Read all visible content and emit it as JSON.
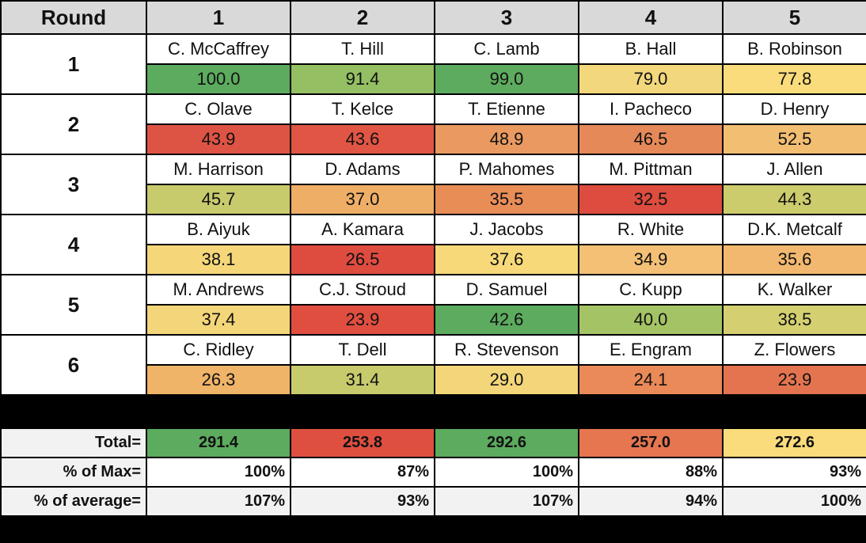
{
  "header": [
    "Round",
    "1",
    "2",
    "3",
    "4",
    "5"
  ],
  "rounds": [
    {
      "label": "1",
      "names": [
        "C. McCaffrey",
        "T. Hill",
        "C. Lamb",
        "B. Hall",
        "B. Robinson"
      ],
      "scores": [
        "100.0",
        "91.4",
        "99.0",
        "79.0",
        "77.8"
      ],
      "colors": [
        "#5cab5e",
        "#94bf62",
        "#5dab5e",
        "#f3d77c",
        "#fadc7c"
      ]
    },
    {
      "label": "2",
      "names": [
        "C. Olave",
        "T. Kelce",
        "T. Etienne",
        "I. Pacheco",
        "D. Henry"
      ],
      "scores": [
        "43.9",
        "43.6",
        "48.9",
        "46.5",
        "52.5"
      ],
      "colors": [
        "#de5444",
        "#e05544",
        "#ea9a60",
        "#e68958",
        "#f2be72"
      ]
    },
    {
      "label": "3",
      "names": [
        "M. Harrison",
        "D. Adams",
        "P. Mahomes",
        "M. Pittman",
        "J. Allen"
      ],
      "scores": [
        "45.7",
        "37.0",
        "35.5",
        "32.5",
        "44.3"
      ],
      "colors": [
        "#c8cb6c",
        "#efae66",
        "#e98d57",
        "#dd4c3e",
        "#cdcc6d"
      ]
    },
    {
      "label": "4",
      "names": [
        "B. Aiyuk",
        "A. Kamara",
        "J. Jacobs",
        "R. White",
        "D.K. Metcalf"
      ],
      "scores": [
        "38.1",
        "26.5",
        "37.6",
        "34.9",
        "35.6"
      ],
      "colors": [
        "#f5d77a",
        "#de4c3f",
        "#f8d97a",
        "#f3c076",
        "#f3b86f"
      ]
    },
    {
      "label": "5",
      "names": [
        "M. Andrews",
        "C.J. Stroud",
        "D. Samuel",
        "C. Kupp",
        "K. Walker"
      ],
      "scores": [
        "37.4",
        "23.9",
        "42.6",
        "40.0",
        "38.5"
      ],
      "colors": [
        "#f4d67a",
        "#e04e3f",
        "#5cab5e",
        "#a4c365",
        "#d4cf71"
      ]
    },
    {
      "label": "6",
      "names": [
        "C. Ridley",
        "T. Dell",
        "R. Stevenson",
        "E. Engram",
        "Z. Flowers"
      ],
      "scores": [
        "26.3",
        "31.4",
        "29.0",
        "24.1",
        "23.9"
      ],
      "colors": [
        "#f0b469",
        "#c8cb6c",
        "#f3d67a",
        "#ea8a58",
        "#e47450"
      ]
    }
  ],
  "totals": {
    "label": "Total=",
    "values": [
      "291.4",
      "253.8",
      "292.6",
      "257.0",
      "272.6"
    ],
    "colors": [
      "#5cab5e",
      "#df4f40",
      "#5cab5e",
      "#e57650",
      "#fadc7c"
    ]
  },
  "pct_max": {
    "label": "% of Max=",
    "values": [
      "100%",
      "87%",
      "100%",
      "88%",
      "93%"
    ]
  },
  "pct_avg": {
    "label": "% of average=",
    "values": [
      "107%",
      "93%",
      "107%",
      "94%",
      "100%"
    ]
  }
}
